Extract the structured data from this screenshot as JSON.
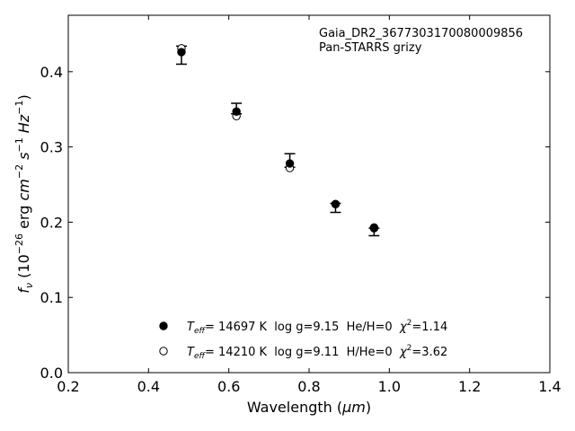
{
  "chart_data": {
    "type": "scatter",
    "title": "",
    "annotation": {
      "line1": "Gaia_DR2_3677303170080009856",
      "line2": "Pan-STARRS grizy"
    },
    "xlabel_text": "Wavelength (",
    "xlabel_unit": "μm",
    "xlabel_close": ")",
    "ylabel_sym": "f",
    "ylabel_sub": "ν",
    "ylabel_text": " (10",
    "ylabel_exp": "−26",
    "ylabel_rest": " erg ",
    "ylabel_cm": "cm",
    "ylabel_cm_exp": "−2",
    "ylabel_s": " s",
    "ylabel_s_exp": "−1",
    "ylabel_hz": " Hz",
    "ylabel_hz_exp": "−1",
    "ylabel_close": ")",
    "xlim": [
      0.2,
      1.4
    ],
    "ylim": [
      0.0,
      0.475
    ],
    "xticks": [
      0.2,
      0.4,
      0.6,
      0.8,
      1.0,
      1.2,
      1.4
    ],
    "xtick_labels": [
      "0.2",
      "0.4",
      "0.6",
      "0.8",
      "1.0",
      "1.2",
      "1.4"
    ],
    "yticks": [
      0.0,
      0.1,
      0.2,
      0.3,
      0.4
    ],
    "ytick_labels": [
      "0.0",
      "0.1",
      "0.2",
      "0.3",
      "0.4"
    ],
    "grid": false,
    "legend_position": "lower-center",
    "observed": {
      "x": [
        0.482,
        0.619,
        0.752,
        0.866,
        0.962
      ],
      "y": [
        0.422,
        0.347,
        0.276,
        0.222,
        0.189
      ],
      "yerr_low": [
        0.012,
        0.003,
        0.003,
        0.009,
        0.007
      ],
      "yerr_high": [
        0.012,
        0.011,
        0.015,
        0.003,
        0.003
      ]
    },
    "series": [
      {
        "marker": "filled",
        "teff_label": "T",
        "teff_sub": "eff",
        "text": "= 14697 K  log g=9.15  He/H=0  ",
        "chi_label": "χ",
        "chi_exp": "2",
        "chi_value": "=1.14",
        "x": [
          0.482,
          0.619,
          0.752,
          0.866,
          0.962
        ],
        "y": [
          0.426,
          0.347,
          0.278,
          0.224,
          0.192
        ]
      },
      {
        "marker": "open",
        "teff_label": "T",
        "teff_sub": "eff",
        "text": "= 14210 K  log g=9.11  H/He=0  ",
        "chi_label": "χ",
        "chi_exp": "2",
        "chi_value": "=3.62",
        "x": [
          0.482,
          0.619,
          0.752,
          0.866,
          0.962
        ],
        "y": [
          0.431,
          0.341,
          0.272,
          0.224,
          0.193
        ]
      }
    ]
  }
}
